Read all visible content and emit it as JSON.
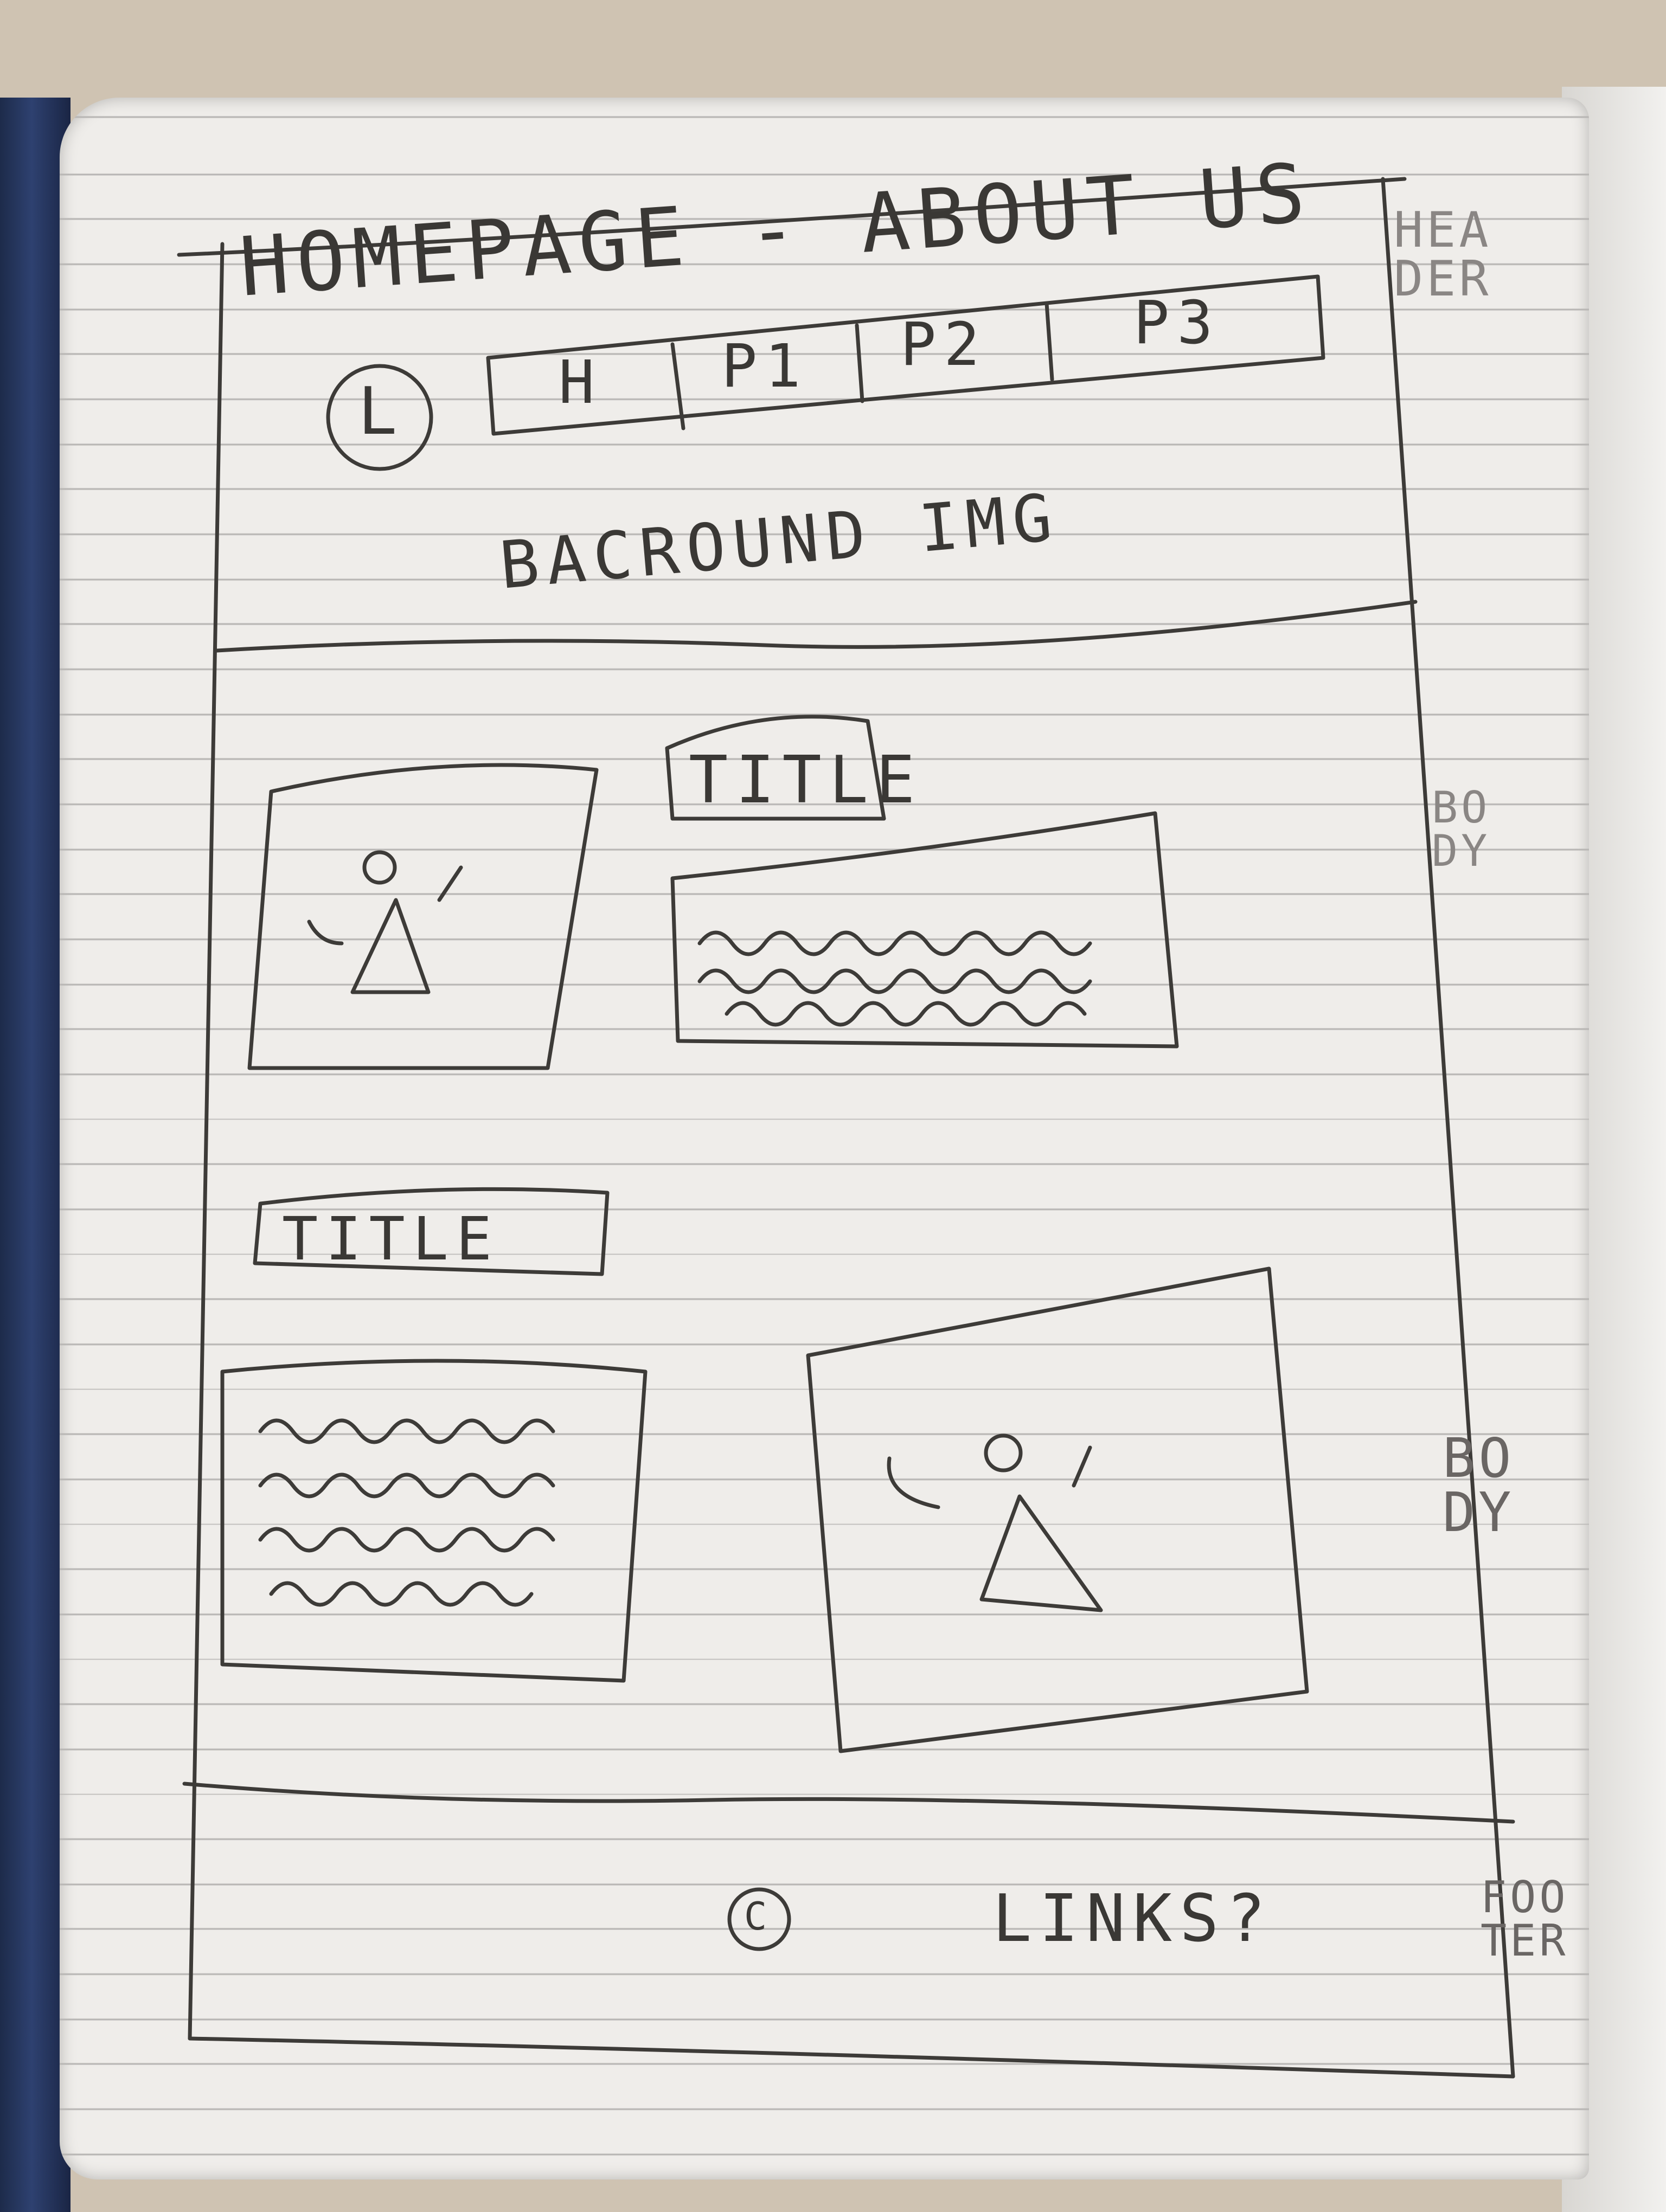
{
  "sketch": {
    "page_title": "HOMEPAGE - ABOUT US",
    "nav": {
      "logo": "L",
      "items": [
        "H",
        "P1",
        "P2",
        "P3"
      ]
    },
    "header_background": "BACROUND IMG",
    "section_titles": [
      "TITLE",
      "TITLE"
    ],
    "footer": {
      "copyright": "C",
      "links": "LINKS?"
    },
    "margin_labels": {
      "header": "HEA DER",
      "body_1": "BO DY",
      "body_2": "BO DY",
      "footer": "FOO TER"
    }
  }
}
